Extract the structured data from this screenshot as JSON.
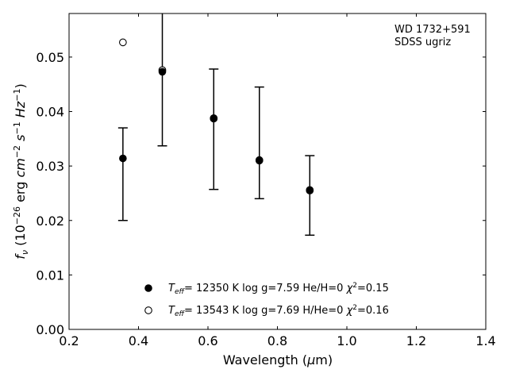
{
  "chart_data": {
    "type": "scatter",
    "annotation_lines": [
      "WD 1732+591",
      "SDSS ugriz"
    ],
    "xlabel_pre": "Wavelength (",
    "xlabel_mu": "μ",
    "xlabel_post": "m)",
    "ylabel_parts": [
      "f",
      "ν",
      " (10",
      "−26",
      " erg ",
      "cm",
      "−2",
      " ",
      "s",
      "−1",
      " ",
      "Hz",
      "−1",
      ")"
    ],
    "xlim": [
      0.2,
      1.4
    ],
    "ylim": [
      0.0,
      0.058
    ],
    "xticks": [
      0.2,
      0.4,
      0.6,
      0.8,
      1.0,
      1.2,
      1.4
    ],
    "xtick_labels": [
      "0.2",
      "0.4",
      "0.6",
      "0.8",
      "1.0",
      "1.2",
      "1.4"
    ],
    "yticks": [
      0.0,
      0.01,
      0.02,
      0.03,
      0.04,
      0.05
    ],
    "ytick_labels": [
      "0.00",
      "0.01",
      "0.02",
      "0.03",
      "0.04",
      "0.05"
    ],
    "grid": false,
    "legend_position": "lower-center",
    "series": [
      {
        "marker": "filled-circle",
        "color": "#000000",
        "label_parts": [
          "T",
          "eff",
          "= 12350 K  log g=7.59  He/H=0  ",
          "χ",
          "2",
          "=0.15"
        ],
        "points": [
          {
            "x": 0.3551,
            "y": 0.0314,
            "ylow": 0.02,
            "yhigh": 0.037
          },
          {
            "x": 0.4686,
            "y": 0.0473,
            "ylow": 0.0337,
            "yhigh": 0.061
          },
          {
            "x": 0.6166,
            "y": 0.0388,
            "ylow": 0.0257,
            "yhigh": 0.0478
          },
          {
            "x": 0.748,
            "y": 0.0311,
            "ylow": 0.024,
            "yhigh": 0.0445
          },
          {
            "x": 0.8932,
            "y": 0.0256,
            "ylow": 0.0173,
            "yhigh": 0.0319
          }
        ]
      },
      {
        "marker": "open-circle",
        "color": "#000000",
        "label_parts": [
          "T",
          "eff",
          "= 13543 K  log g=7.69  H/He=0  ",
          "χ",
          "2",
          "=0.16"
        ],
        "points": [
          {
            "x": 0.3551,
            "y": 0.0527
          },
          {
            "x": 0.4686,
            "y": 0.0476
          },
          {
            "x": 0.6166,
            "y": 0.0387
          },
          {
            "x": 0.748,
            "y": 0.031
          },
          {
            "x": 0.8932,
            "y": 0.0255
          }
        ]
      }
    ]
  }
}
